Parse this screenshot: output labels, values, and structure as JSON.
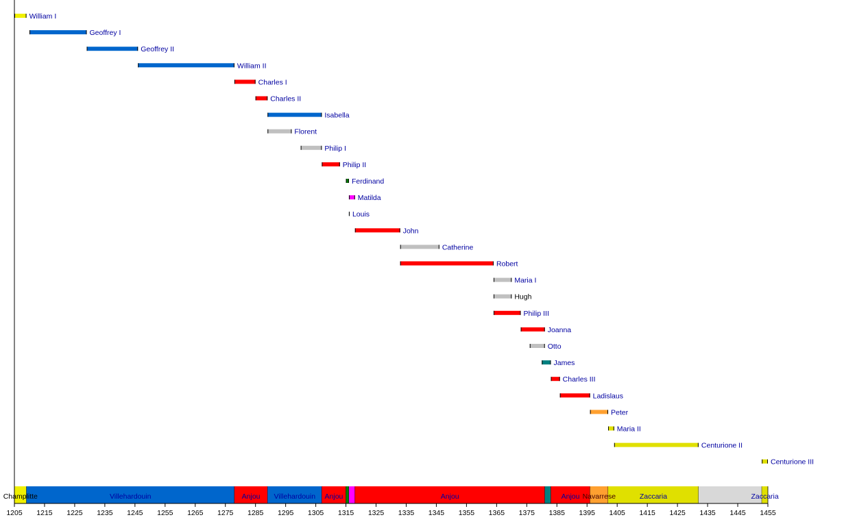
{
  "chart_data": {
    "type": "timeline",
    "xlim": [
      1205,
      1455
    ],
    "xticks": [
      1205,
      1215,
      1225,
      1235,
      1245,
      1255,
      1265,
      1275,
      1285,
      1295,
      1305,
      1315,
      1325,
      1335,
      1345,
      1355,
      1365,
      1375,
      1385,
      1395,
      1405,
      1415,
      1425,
      1435,
      1445,
      1455
    ],
    "grid": false,
    "rows": [
      {
        "name": "William I",
        "start": 1205,
        "end": 1209,
        "color": "#f0f000",
        "label_color": "#0000a0"
      },
      {
        "name": "Geoffrey I",
        "start": 1210,
        "end": 1229,
        "color": "#0066cc",
        "label_color": "#0000a0"
      },
      {
        "name": "Geoffrey II",
        "start": 1229,
        "end": 1246,
        "color": "#0066cc",
        "label_color": "#0000a0"
      },
      {
        "name": "William II",
        "start": 1246,
        "end": 1278,
        "color": "#0066cc",
        "label_color": "#0000a0"
      },
      {
        "name": "Charles I",
        "start": 1278,
        "end": 1285,
        "color": "#ff0000",
        "label_color": "#0000a0"
      },
      {
        "name": "Charles II",
        "start": 1285,
        "end": 1289,
        "color": "#ff0000",
        "label_color": "#0000a0"
      },
      {
        "name": "Isabella",
        "start": 1289,
        "end": 1307,
        "color": "#0066cc",
        "label_color": "#0000a0"
      },
      {
        "name": "Florent",
        "start": 1289,
        "end": 1297,
        "color": "#c0c0c0",
        "label_color": "#0000a0"
      },
      {
        "name": "Philip I",
        "start": 1300,
        "end": 1307,
        "color": "#c0c0c0",
        "label_color": "#0000a0"
      },
      {
        "name": "Philip II",
        "start": 1307,
        "end": 1313,
        "color": "#ff0000",
        "label_color": "#0000a0"
      },
      {
        "name": "Ferdinand",
        "start": 1315,
        "end": 1316,
        "color": "#008000",
        "label_color": "#0000a0"
      },
      {
        "name": "Matilda",
        "start": 1316,
        "end": 1318,
        "color": "#ff00ff",
        "label_color": "#0000a0"
      },
      {
        "name": "Louis",
        "start": 1316,
        "end": 1316.2,
        "color": "#0066cc",
        "label_color": "#0000a0"
      },
      {
        "name": "John",
        "start": 1318,
        "end": 1333,
        "color": "#ff0000",
        "label_color": "#0000a0"
      },
      {
        "name": "Catherine",
        "start": 1333,
        "end": 1346,
        "color": "#c0c0c0",
        "label_color": "#0000a0"
      },
      {
        "name": "Robert",
        "start": 1333,
        "end": 1364,
        "color": "#ff0000",
        "label_color": "#0000a0"
      },
      {
        "name": "Maria I",
        "start": 1364,
        "end": 1370,
        "color": "#c0c0c0",
        "label_color": "#0000a0"
      },
      {
        "name": "Hugh",
        "start": 1364,
        "end": 1370,
        "color": "#c0c0c0",
        "label_color": "#000000"
      },
      {
        "name": "Philip III",
        "start": 1364,
        "end": 1373,
        "color": "#ff0000",
        "label_color": "#0000a0"
      },
      {
        "name": "Joanna",
        "start": 1373,
        "end": 1381,
        "color": "#ff0000",
        "label_color": "#0000a0"
      },
      {
        "name": "Otto",
        "start": 1376,
        "end": 1381,
        "color": "#c0c0c0",
        "label_color": "#0000a0"
      },
      {
        "name": "James",
        "start": 1380,
        "end": 1383,
        "color": "#008080",
        "label_color": "#0000a0"
      },
      {
        "name": "Charles III",
        "start": 1383,
        "end": 1386,
        "color": "#ff0000",
        "label_color": "#0000a0"
      },
      {
        "name": "Ladislaus",
        "start": 1386,
        "end": 1396,
        "color": "#ff0000",
        "label_color": "#0000a0"
      },
      {
        "name": "Peter",
        "start": 1396,
        "end": 1402,
        "color": "#ffa030",
        "label_color": "#0000a0"
      },
      {
        "name": "Maria II",
        "start": 1402,
        "end": 1404,
        "color": "#e0e000",
        "label_color": "#0000a0"
      },
      {
        "name": "Centurione II",
        "start": 1404,
        "end": 1432,
        "color": "#e0e000",
        "label_color": "#0000a0"
      },
      {
        "name": "Centurione III",
        "start": 1453,
        "end": 1455,
        "color": "#e0e000",
        "label_color": "#0000a0"
      }
    ],
    "dynasties": [
      {
        "label": "Champlitte",
        "start": 1205,
        "end": 1209,
        "color": "#f0f000",
        "label_color": "#000000"
      },
      {
        "label": "Villehardouin",
        "start": 1209,
        "end": 1278,
        "color": "#0066cc",
        "label_color": "#0000a0"
      },
      {
        "label": "Anjou",
        "start": 1278,
        "end": 1289,
        "color": "#ff0000",
        "label_color": "#0000a0"
      },
      {
        "label": "Villehardouin",
        "start": 1289,
        "end": 1307,
        "color": "#0066cc",
        "label_color": "#0000a0"
      },
      {
        "label": "Anjou",
        "start": 1307,
        "end": 1315,
        "color": "#ff0000",
        "label_color": "#0000a0"
      },
      {
        "label": "",
        "start": 1315,
        "end": 1316,
        "color": "#008000",
        "label_color": "#0000a0"
      },
      {
        "label": "",
        "start": 1316,
        "end": 1318,
        "color": "#ff00ff",
        "label_color": "#0000a0"
      },
      {
        "label": "Anjou",
        "start": 1318,
        "end": 1381,
        "color": "#ff0000",
        "label_color": "#0000a0"
      },
      {
        "label": "",
        "start": 1381,
        "end": 1383,
        "color": "#008080",
        "label_color": "#0000a0"
      },
      {
        "label": "Anjou",
        "start": 1383,
        "end": 1396,
        "color": "#ff0000",
        "label_color": "#0000a0"
      },
      {
        "label": "Navarrese",
        "start": 1396,
        "end": 1402,
        "color": "#ffa030",
        "label_color": "#400000"
      },
      {
        "label": "Zaccaria",
        "start": 1402,
        "end": 1432,
        "color": "#e0e000",
        "label_color": "#0000a0"
      },
      {
        "label": "",
        "start": 1432,
        "end": 1453,
        "color": "#d8d8d8",
        "label_color": "#0000a0"
      },
      {
        "label": "Zaccaria",
        "start": 1453,
        "end": 1455,
        "color": "#e0e000",
        "label_color": "#0000a0"
      }
    ]
  }
}
